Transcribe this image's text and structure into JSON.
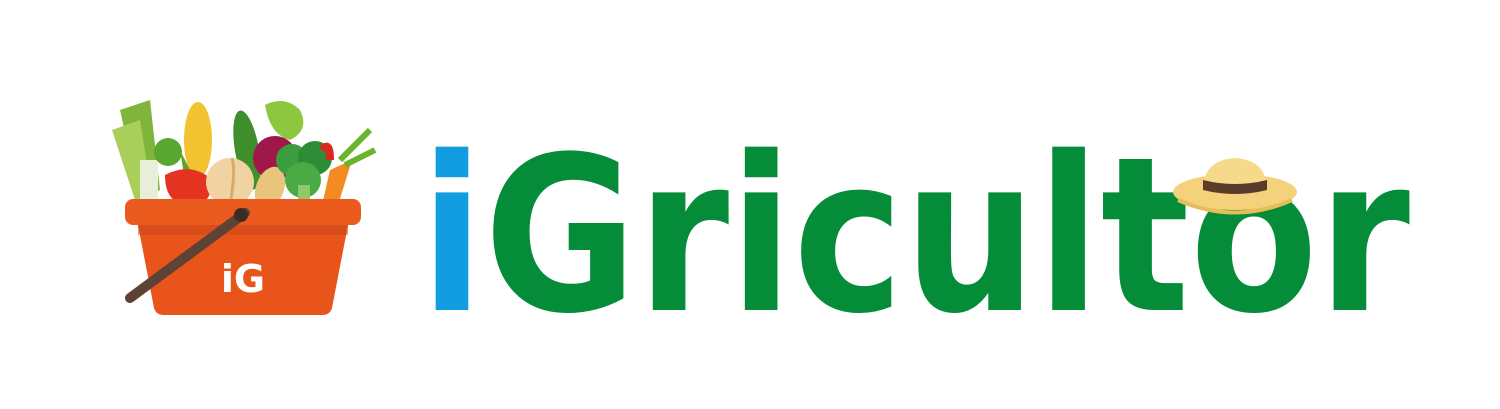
{
  "logo": {
    "basket_label": "iG",
    "wordmark_prefix": "i",
    "wordmark_rest": "Gricultor"
  }
}
